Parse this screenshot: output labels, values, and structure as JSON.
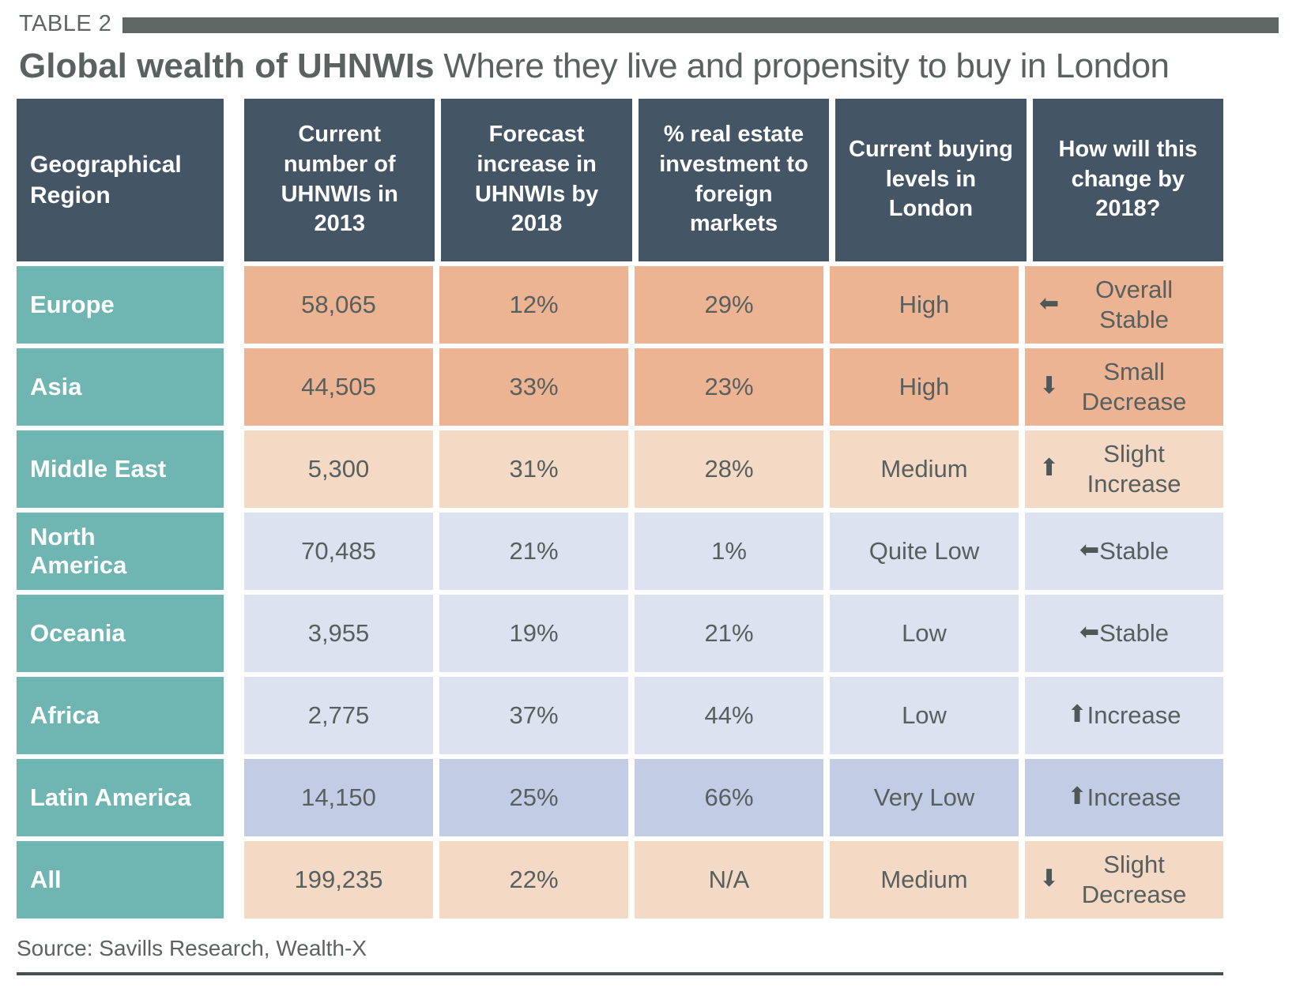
{
  "table_label": "TABLE 2",
  "title": {
    "bold": "Global wealth of UHNWIs",
    "rest": " Where they live and propensity to buy in London"
  },
  "columns": [
    "Geographical\nRegion",
    "Current number of UHNWIs in 2013",
    "Forecast increase in UHNWIs by 2018",
    "% real estate investment to foreign markets",
    "Current buying levels in London",
    "How will this change by 2018?"
  ],
  "rows": [
    {
      "region": "Europe",
      "uhnwis_2013": "58,065",
      "forecast_2018": "12%",
      "foreign_pct": "29%",
      "buying": "High",
      "change_glyph": "⬅",
      "change_text": " Overall Stable"
    },
    {
      "region": "Asia",
      "uhnwis_2013": "44,505",
      "forecast_2018": "33%",
      "foreign_pct": "23%",
      "buying": "High",
      "change_glyph": "⬇",
      "change_text": "Small Decrease"
    },
    {
      "region": "Middle East",
      "uhnwis_2013": "5,300",
      "forecast_2018": "31%",
      "foreign_pct": "28%",
      "buying": "Medium",
      "change_glyph": "⬆",
      "change_text": "Slight Increase"
    },
    {
      "region": "North\nAmerica",
      "uhnwis_2013": "70,485",
      "forecast_2018": "21%",
      "foreign_pct": "1%",
      "buying": "Quite Low",
      "change_glyph": "⬅",
      "change_text": " Stable"
    },
    {
      "region": "Oceania",
      "uhnwis_2013": "3,955",
      "forecast_2018": "19%",
      "foreign_pct": "21%",
      "buying": "Low",
      "change_glyph": "⬅",
      "change_text": " Stable"
    },
    {
      "region": "Africa",
      "uhnwis_2013": "2,775",
      "forecast_2018": "37%",
      "foreign_pct": "44%",
      "buying": "Low",
      "change_glyph": "⬆",
      "change_text": "Increase"
    },
    {
      "region": "Latin America",
      "uhnwis_2013": "14,150",
      "forecast_2018": "25%",
      "foreign_pct": "66%",
      "buying": "Very Low",
      "change_glyph": "⬆",
      "change_text": "Increase"
    },
    {
      "region": "All",
      "uhnwis_2013": "199,235",
      "forecast_2018": "22%",
      "foreign_pct": "N/A",
      "buying": "Medium",
      "change_glyph": "⬇",
      "change_text": "Slight Decrease"
    }
  ],
  "source": "Source: Savills Research, Wealth-X",
  "colors": {
    "header_bg": "#445666",
    "region_bg": "#6fb5b1",
    "row_orange": "#ecb492",
    "row_peach": "#f4d9c5",
    "row_lavender": "#dce2ef",
    "row_lavender_dark": "#c2cce4",
    "cell_text": "#58605f",
    "top_bar": "#5f6866",
    "bottom_rule": "#474e4e"
  },
  "chart_data": {
    "type": "table",
    "title": "Global wealth of UHNWIs — Where they live and propensity to buy in London",
    "columns": [
      "Geographical Region",
      "Current number of UHNWIs in 2013",
      "Forecast increase in UHNWIs by 2018",
      "% real estate investment to foreign markets",
      "Current buying levels in London",
      "How will this change by 2018?"
    ],
    "rows": [
      [
        "Europe",
        58065,
        "12%",
        "29%",
        "High",
        "Overall Stable"
      ],
      [
        "Asia",
        44505,
        "33%",
        "23%",
        "High",
        "Small Decrease"
      ],
      [
        "Middle East",
        5300,
        "31%",
        "28%",
        "Medium",
        "Slight Increase"
      ],
      [
        "North America",
        70485,
        "21%",
        "1%",
        "Quite Low",
        "Stable"
      ],
      [
        "Oceania",
        3955,
        "19%",
        "21%",
        "Low",
        "Stable"
      ],
      [
        "Africa",
        2775,
        "37%",
        "44%",
        "Low",
        "Increase"
      ],
      [
        "Latin America",
        14150,
        "25%",
        "66%",
        "Very Low",
        "Increase"
      ],
      [
        "All",
        199235,
        "22%",
        "N/A",
        "Medium",
        "Slight Decrease"
      ]
    ]
  }
}
